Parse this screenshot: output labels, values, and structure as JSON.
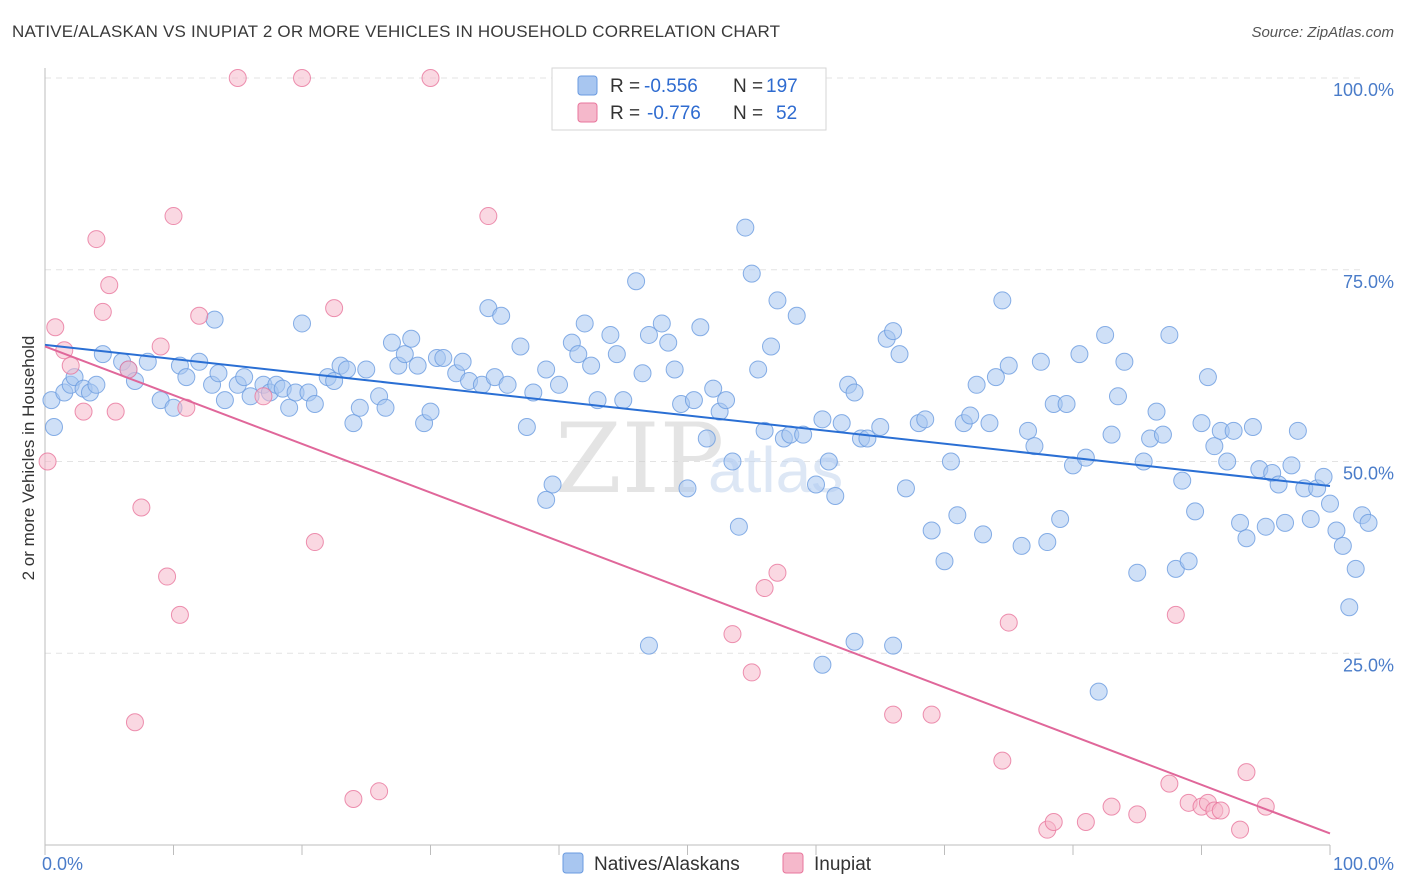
{
  "title": "NATIVE/ALASKAN VS INUPIAT 2 OR MORE VEHICLES IN HOUSEHOLD CORRELATION CHART",
  "source": "Source: ZipAtlas.com",
  "watermark": {
    "zip": "ZIP",
    "atlas": "atlas"
  },
  "legend": {
    "r_label": "R =",
    "n_label": "N =",
    "rows": [
      {
        "series": "Natives/Alaskans",
        "r": "-0.556",
        "n": "197",
        "color": "#a8c6f0"
      },
      {
        "series": "Inupiat",
        "r": "-0.776",
        "n": "52",
        "color": "#f5b8cb"
      }
    ]
  },
  "chart_data": {
    "type": "scatter",
    "title": "NATIVE/ALASKAN VS INUPIAT 2 OR MORE VEHICLES IN HOUSEHOLD CORRELATION CHART",
    "xlabel": "",
    "ylabel": "2 or more Vehicles in Household",
    "xlim": [
      0,
      100
    ],
    "ylim": [
      0,
      100
    ],
    "x_tick_labels": [
      "0.0%",
      "100.0%"
    ],
    "y_tick_labels": [
      "100.0%",
      "75.0%",
      "50.0%",
      "25.0%"
    ],
    "y_ticks": [
      100,
      75,
      50,
      25
    ],
    "grid": true,
    "legend_placement": "top-center",
    "series": [
      {
        "name": "Natives/Alaskans",
        "color": "#6a9be0",
        "fill": "#a8c6f0",
        "trend": {
          "x": [
            0,
            100
          ],
          "y": [
            65.2,
            46.8
          ]
        },
        "points": [
          [
            0.5,
            58
          ],
          [
            0.7,
            54.5
          ],
          [
            1.5,
            59
          ],
          [
            2,
            60
          ],
          [
            2.3,
            61
          ],
          [
            3,
            59.5
          ],
          [
            3.5,
            59
          ],
          [
            4,
            60
          ],
          [
            4.5,
            64
          ],
          [
            6,
            63
          ],
          [
            6.5,
            62
          ],
          [
            7,
            60.5
          ],
          [
            8,
            63
          ],
          [
            9,
            58
          ],
          [
            10,
            57
          ],
          [
            10.5,
            62.5
          ],
          [
            11,
            61
          ],
          [
            12,
            63
          ],
          [
            13,
            60
          ],
          [
            13.2,
            68.5
          ],
          [
            13.5,
            61.5
          ],
          [
            14,
            58
          ],
          [
            15,
            60
          ],
          [
            15.5,
            61
          ],
          [
            16,
            58.5
          ],
          [
            17,
            60
          ],
          [
            17.5,
            59
          ],
          [
            18,
            60
          ],
          [
            18.5,
            59.5
          ],
          [
            19,
            57
          ],
          [
            19.5,
            59
          ],
          [
            20,
            68
          ],
          [
            20.5,
            59
          ],
          [
            21,
            57.5
          ],
          [
            22,
            61
          ],
          [
            22.5,
            60.5
          ],
          [
            23,
            62.5
          ],
          [
            23.5,
            62
          ],
          [
            24,
            55
          ],
          [
            24.5,
            57
          ],
          [
            25,
            62
          ],
          [
            26,
            58.5
          ],
          [
            26.5,
            57
          ],
          [
            27,
            65.5
          ],
          [
            27.5,
            62.5
          ],
          [
            28,
            64
          ],
          [
            28.5,
            66
          ],
          [
            29,
            62.5
          ],
          [
            29.5,
            55
          ],
          [
            30,
            56.5
          ],
          [
            30.5,
            63.5
          ],
          [
            31,
            63.5
          ],
          [
            32,
            61.5
          ],
          [
            32.5,
            63
          ],
          [
            33,
            60.5
          ],
          [
            34,
            60
          ],
          [
            34.5,
            70
          ],
          [
            35,
            61
          ],
          [
            35.5,
            69
          ],
          [
            36,
            60
          ],
          [
            37,
            65
          ],
          [
            37.5,
            54.5
          ],
          [
            38,
            59
          ],
          [
            39,
            62
          ],
          [
            39.5,
            47
          ],
          [
            40,
            60
          ],
          [
            41,
            65.5
          ],
          [
            41.5,
            64
          ],
          [
            42,
            68
          ],
          [
            42.5,
            62.5
          ],
          [
            43,
            58
          ],
          [
            44,
            66.5
          ],
          [
            44.5,
            64
          ],
          [
            45,
            58
          ],
          [
            46,
            73.5
          ],
          [
            46.5,
            61.5
          ],
          [
            47,
            66.5
          ],
          [
            48,
            68
          ],
          [
            48.5,
            65.5
          ],
          [
            49,
            62
          ],
          [
            49.5,
            57.5
          ],
          [
            50,
            46.5
          ],
          [
            50.5,
            58
          ],
          [
            51,
            67.5
          ],
          [
            51.5,
            53
          ],
          [
            52,
            59.5
          ],
          [
            52.5,
            56.5
          ],
          [
            53,
            58
          ],
          [
            53.5,
            50
          ],
          [
            54,
            41.5
          ],
          [
            54.5,
            80.5
          ],
          [
            55,
            74.5
          ],
          [
            55.5,
            62
          ],
          [
            56,
            54
          ],
          [
            56.5,
            65
          ],
          [
            57,
            71
          ],
          [
            57.5,
            53
          ],
          [
            58,
            53.5
          ],
          [
            58.5,
            69
          ],
          [
            59,
            53.5
          ],
          [
            60,
            47
          ],
          [
            60.5,
            55.5
          ],
          [
            61,
            50
          ],
          [
            61.5,
            45.5
          ],
          [
            62,
            55
          ],
          [
            62.5,
            60
          ],
          [
            63,
            59
          ],
          [
            63.5,
            53
          ],
          [
            64,
            53
          ],
          [
            65,
            54.5
          ],
          [
            65.5,
            66
          ],
          [
            66,
            67
          ],
          [
            66.5,
            64
          ],
          [
            67,
            46.5
          ],
          [
            68,
            55
          ],
          [
            68.5,
            55.5
          ],
          [
            69,
            41
          ],
          [
            70,
            37
          ],
          [
            70.5,
            50
          ],
          [
            71,
            43
          ],
          [
            71.5,
            55
          ],
          [
            72,
            56
          ],
          [
            72.5,
            60
          ],
          [
            73,
            40.5
          ],
          [
            73.5,
            55
          ],
          [
            74,
            61
          ],
          [
            74.5,
            71
          ],
          [
            75,
            62.5
          ],
          [
            76,
            39
          ],
          [
            76.5,
            54
          ],
          [
            77,
            52
          ],
          [
            77.5,
            63
          ],
          [
            78,
            39.5
          ],
          [
            78.5,
            57.5
          ],
          [
            79,
            42.5
          ],
          [
            79.5,
            57.5
          ],
          [
            80,
            49.5
          ],
          [
            80.5,
            64
          ],
          [
            81,
            50.5
          ],
          [
            82,
            20
          ],
          [
            82.5,
            66.5
          ],
          [
            83,
            53.5
          ],
          [
            83.5,
            58.5
          ],
          [
            84,
            63
          ],
          [
            85,
            35.5
          ],
          [
            85.5,
            50
          ],
          [
            86,
            53
          ],
          [
            86.5,
            56.5
          ],
          [
            87,
            53.5
          ],
          [
            87.5,
            66.5
          ],
          [
            88,
            36
          ],
          [
            88.5,
            47.5
          ],
          [
            89,
            37
          ],
          [
            89.5,
            43.5
          ],
          [
            90,
            55
          ],
          [
            90.5,
            61
          ],
          [
            91,
            52
          ],
          [
            91.5,
            54
          ],
          [
            92,
            50
          ],
          [
            92.5,
            54
          ],
          [
            93,
            42
          ],
          [
            93.5,
            40
          ],
          [
            94,
            54.5
          ],
          [
            94.5,
            49
          ],
          [
            95,
            41.5
          ],
          [
            95.5,
            48.5
          ],
          [
            96,
            47
          ],
          [
            96.5,
            42
          ],
          [
            97,
            49.5
          ],
          [
            97.5,
            54
          ],
          [
            98,
            46.5
          ],
          [
            98.5,
            42.5
          ],
          [
            99,
            46.5
          ],
          [
            99.5,
            48
          ],
          [
            100,
            44.5
          ],
          [
            100.5,
            41
          ],
          [
            101,
            39
          ],
          [
            101.5,
            31
          ],
          [
            102,
            36
          ],
          [
            102.5,
            43
          ],
          [
            103,
            42
          ],
          [
            39,
            45
          ],
          [
            47,
            26
          ],
          [
            60.5,
            23.5
          ],
          [
            63,
            26.5
          ],
          [
            66,
            26
          ]
        ]
      },
      {
        "name": "Inupiat",
        "color": "#e8769c",
        "fill": "#f5b8cb",
        "trend": {
          "x": [
            0,
            100
          ],
          "y": [
            65,
            1.5
          ]
        },
        "points": [
          [
            0.2,
            50
          ],
          [
            0.8,
            67.5
          ],
          [
            1.5,
            64.5
          ],
          [
            2,
            62.5
          ],
          [
            3,
            56.5
          ],
          [
            4,
            79
          ],
          [
            4.5,
            69.5
          ],
          [
            5,
            73
          ],
          [
            5.5,
            56.5
          ],
          [
            6.5,
            62
          ],
          [
            7,
            16
          ],
          [
            7.5,
            44
          ],
          [
            9,
            65
          ],
          [
            9.5,
            35
          ],
          [
            10,
            82
          ],
          [
            10.5,
            30
          ],
          [
            11,
            57
          ],
          [
            12,
            69
          ],
          [
            15,
            100
          ],
          [
            17,
            58.5
          ],
          [
            20,
            100
          ],
          [
            21,
            39.5
          ],
          [
            22.5,
            70
          ],
          [
            24,
            6
          ],
          [
            26,
            7
          ],
          [
            30,
            100
          ],
          [
            34.5,
            82
          ],
          [
            53.5,
            27.5
          ],
          [
            55,
            22.5
          ],
          [
            56,
            33.5
          ],
          [
            57,
            35.5
          ],
          [
            66,
            17
          ],
          [
            69,
            17
          ],
          [
            74.5,
            11
          ],
          [
            75,
            29
          ],
          [
            78,
            2
          ],
          [
            78.5,
            3
          ],
          [
            81,
            3
          ],
          [
            83,
            5
          ],
          [
            85,
            4
          ],
          [
            87.5,
            8
          ],
          [
            88,
            30
          ],
          [
            89,
            5.5
          ],
          [
            90,
            5
          ],
          [
            90.5,
            5.5
          ],
          [
            91,
            4.5
          ],
          [
            91.5,
            4.5
          ],
          [
            93,
            2
          ],
          [
            93.5,
            9.5
          ],
          [
            95,
            5
          ]
        ]
      }
    ]
  },
  "bottom_legend": [
    {
      "label": "Natives/Alaskans",
      "color": "#a8c6f0"
    },
    {
      "label": "Inupiat",
      "color": "#f5b8cb"
    }
  ]
}
